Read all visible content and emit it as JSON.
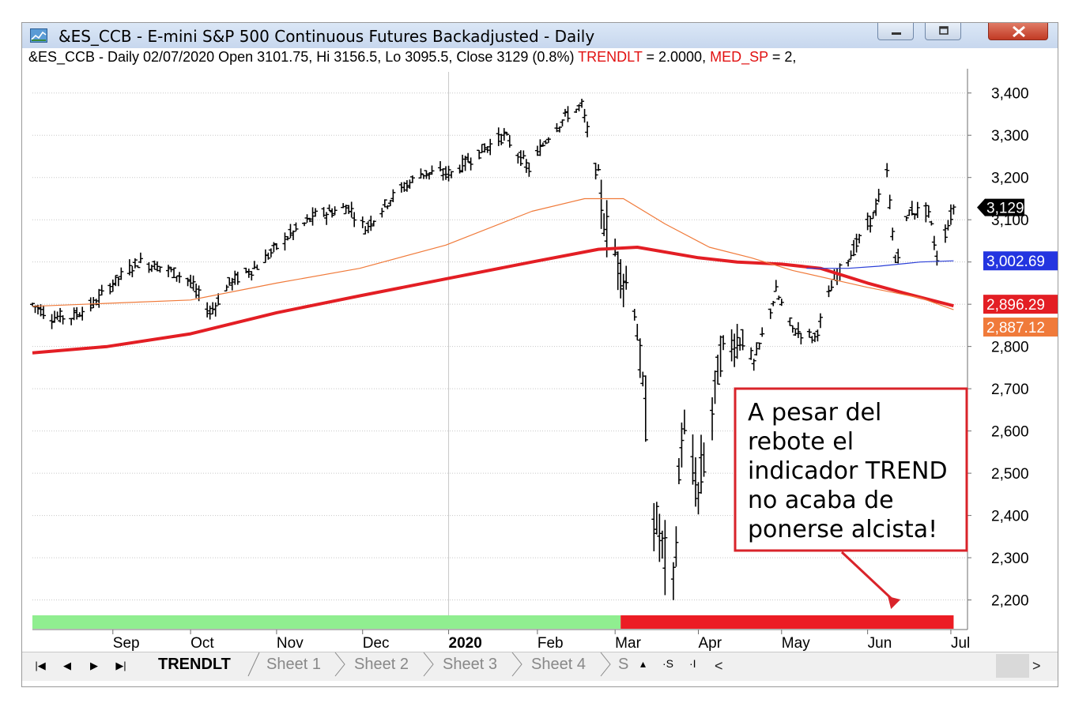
{
  "window": {
    "title": "&ES_CCB - E-mini S&P 500 Continuous Futures Backadjusted - Daily",
    "controls": {
      "minimize": "minimize",
      "maximize": "maximize",
      "close": "close"
    }
  },
  "infobar": {
    "text": "&ES_CCB - Daily 02/07/2020 Open 3101.75, Hi 3156.5, Lo 3095.5, Close 3129 (0.8%)",
    "ind1_name": "TRENDLT",
    "ind1_value": "= 2.0000,",
    "ind2_name": "MED_SP",
    "ind2_value": "= 2,"
  },
  "tabs": {
    "nav": [
      "|◀",
      "◀",
      "▶",
      "▶|"
    ],
    "items": [
      "TRENDLT",
      "Sheet 1",
      "Sheet 2",
      "Sheet 3",
      "Sheet 4",
      "S"
    ],
    "active": "TRENDLT",
    "small_buttons": [
      "▴",
      "·S",
      "·I"
    ],
    "scroll_left": "<",
    "scroll_right": ">"
  },
  "colors": {
    "price_bars": "#000000",
    "ma_slow": "#e31e24",
    "ma_mid": "#f07a3a",
    "ma_blue": "#2b3fd8",
    "trend_bull": "#90ee90",
    "trend_bear": "#ec1c24",
    "annotation_border": "#d9232a",
    "last_price_label": "#000000",
    "blue_label": "#2435e0",
    "red_label": "#e31e24",
    "orange_label": "#f07a3a"
  },
  "chart_data": {
    "type": "line",
    "title": "&ES_CCB - E-mini S&P 500 Continuous Futures Backadjusted - Daily",
    "xlabel": "",
    "ylabel": "",
    "ylim": [
      2130,
      3450
    ],
    "y_ticks": [
      2200,
      2300,
      2400,
      2500,
      2600,
      2700,
      2800,
      2900,
      3000,
      3100,
      3200,
      3300,
      3400
    ],
    "y_tick_labels": [
      "2,200",
      "2,300",
      "2,400",
      "2,500",
      "2,600",
      "2,700",
      "2,800",
      "2,900",
      "3,000",
      "3,100",
      "3,200",
      "3,300",
      "3,400"
    ],
    "x_month_labels": [
      {
        "label": "Sep",
        "date": "2019-09-03",
        "bold": false
      },
      {
        "label": "Oct",
        "date": "2019-10-01",
        "bold": false
      },
      {
        "label": "Nov",
        "date": "2019-11-01",
        "bold": false
      },
      {
        "label": "Dec",
        "date": "2019-12-02",
        "bold": false
      },
      {
        "label": "2020",
        "date": "2020-01-02",
        "bold": true
      },
      {
        "label": "Feb",
        "date": "2020-02-03",
        "bold": false
      },
      {
        "label": "Mar",
        "date": "2020-03-02",
        "bold": false
      },
      {
        "label": "Apr",
        "date": "2020-04-01",
        "bold": false
      },
      {
        "label": "May",
        "date": "2020-05-01",
        "bold": false
      },
      {
        "label": "Jun",
        "date": "2020-06-01",
        "bold": false
      },
      {
        "label": "Jul",
        "date": "2020-07-01",
        "bold": false
      }
    ],
    "x_range": [
      "2019-08-05",
      "2020-07-07"
    ],
    "grid": true,
    "price_bars": {
      "name": "&ES_CCB",
      "kind": "ohlc",
      "approx_close_path": [
        {
          "date": "2019-08-05",
          "value": 2900
        },
        {
          "date": "2019-08-12",
          "value": 2870
        },
        {
          "date": "2019-08-19",
          "value": 2870
        },
        {
          "date": "2019-08-27",
          "value": 2900
        },
        {
          "date": "2019-09-03",
          "value": 2950
        },
        {
          "date": "2019-09-12",
          "value": 3000
        },
        {
          "date": "2019-09-20",
          "value": 2990
        },
        {
          "date": "2019-09-30",
          "value": 2960
        },
        {
          "date": "2019-10-08",
          "value": 2880
        },
        {
          "date": "2019-10-15",
          "value": 2950
        },
        {
          "date": "2019-10-25",
          "value": 2990
        },
        {
          "date": "2019-11-05",
          "value": 3060
        },
        {
          "date": "2019-11-15",
          "value": 3110
        },
        {
          "date": "2019-11-27",
          "value": 3130
        },
        {
          "date": "2019-12-03",
          "value": 3080
        },
        {
          "date": "2019-12-12",
          "value": 3150
        },
        {
          "date": "2019-12-23",
          "value": 3210
        },
        {
          "date": "2020-01-03",
          "value": 3210
        },
        {
          "date": "2020-01-13",
          "value": 3260
        },
        {
          "date": "2020-01-22",
          "value": 3300
        },
        {
          "date": "2020-01-31",
          "value": 3220
        },
        {
          "date": "2020-02-07",
          "value": 3300
        },
        {
          "date": "2020-02-14",
          "value": 3350
        },
        {
          "date": "2020-02-19",
          "value": 3370
        },
        {
          "date": "2020-02-24",
          "value": 3220
        },
        {
          "date": "2020-02-27",
          "value": 3100
        },
        {
          "date": "2020-03-03",
          "value": 3000
        },
        {
          "date": "2020-03-09",
          "value": 2900
        },
        {
          "date": "2020-03-12",
          "value": 2700
        },
        {
          "date": "2020-03-16",
          "value": 2400
        },
        {
          "date": "2020-03-20",
          "value": 2300
        },
        {
          "date": "2020-03-23",
          "value": 2230
        },
        {
          "date": "2020-03-26",
          "value": 2600
        },
        {
          "date": "2020-04-01",
          "value": 2450
        },
        {
          "date": "2020-04-06",
          "value": 2650
        },
        {
          "date": "2020-04-09",
          "value": 2780
        },
        {
          "date": "2020-04-17",
          "value": 2830
        },
        {
          "date": "2020-04-21",
          "value": 2760
        },
        {
          "date": "2020-04-29",
          "value": 2930
        },
        {
          "date": "2020-05-05",
          "value": 2840
        },
        {
          "date": "2020-05-13",
          "value": 2820
        },
        {
          "date": "2020-05-20",
          "value": 2960
        },
        {
          "date": "2020-05-27",
          "value": 3030
        },
        {
          "date": "2020-06-03",
          "value": 3110
        },
        {
          "date": "2020-06-08",
          "value": 3210
        },
        {
          "date": "2020-06-11",
          "value": 3000
        },
        {
          "date": "2020-06-16",
          "value": 3120
        },
        {
          "date": "2020-06-23",
          "value": 3120
        },
        {
          "date": "2020-06-26",
          "value": 3010
        },
        {
          "date": "2020-07-02",
          "value": 3129
        }
      ]
    },
    "series": [
      {
        "name": "MED_SP",
        "color": "#e31e24",
        "points": [
          {
            "date": "2019-08-05",
            "value": 2785
          },
          {
            "date": "2019-09-01",
            "value": 2800
          },
          {
            "date": "2019-10-01",
            "value": 2830
          },
          {
            "date": "2019-11-01",
            "value": 2880
          },
          {
            "date": "2019-12-01",
            "value": 2920
          },
          {
            "date": "2020-01-01",
            "value": 2960
          },
          {
            "date": "2020-02-01",
            "value": 3000
          },
          {
            "date": "2020-02-25",
            "value": 3030
          },
          {
            "date": "2020-03-10",
            "value": 3035
          },
          {
            "date": "2020-04-01",
            "value": 3010
          },
          {
            "date": "2020-04-15",
            "value": 3000
          },
          {
            "date": "2020-05-01",
            "value": 2995
          },
          {
            "date": "2020-05-15",
            "value": 2985
          },
          {
            "date": "2020-06-01",
            "value": 2950
          },
          {
            "date": "2020-06-15",
            "value": 2925
          },
          {
            "date": "2020-07-02",
            "value": 2896.29
          }
        ]
      },
      {
        "name": "",
        "color": "#f07a3a",
        "points": [
          {
            "date": "2019-08-05",
            "value": 2895
          },
          {
            "date": "2019-10-01",
            "value": 2910
          },
          {
            "date": "2019-11-01",
            "value": 2950
          },
          {
            "date": "2019-12-01",
            "value": 2985
          },
          {
            "date": "2020-01-01",
            "value": 3040
          },
          {
            "date": "2020-02-01",
            "value": 3120
          },
          {
            "date": "2020-02-20",
            "value": 3150
          },
          {
            "date": "2020-03-05",
            "value": 3150
          },
          {
            "date": "2020-03-20",
            "value": 3090
          },
          {
            "date": "2020-04-05",
            "value": 3035
          },
          {
            "date": "2020-04-20",
            "value": 3010
          },
          {
            "date": "2020-05-05",
            "value": 2980
          },
          {
            "date": "2020-06-01",
            "value": 2940
          },
          {
            "date": "2020-06-20",
            "value": 2915
          },
          {
            "date": "2020-07-02",
            "value": 2887.12
          }
        ]
      },
      {
        "name": "",
        "color": "#2b3fd8",
        "points": [
          {
            "date": "2020-05-10",
            "value": 2985
          },
          {
            "date": "2020-05-25",
            "value": 2985
          },
          {
            "date": "2020-06-05",
            "value": 2990
          },
          {
            "date": "2020-06-20",
            "value": 3000
          },
          {
            "date": "2020-07-02",
            "value": 3002.69
          }
        ]
      }
    ],
    "trend_strip": [
      {
        "from": "2019-08-05",
        "to": "2020-03-04",
        "state": "bullish",
        "color": "#90ee90"
      },
      {
        "from": "2020-03-04",
        "to": "2020-07-02",
        "state": "bearish",
        "color": "#ec1c24"
      }
    ],
    "value_labels": [
      {
        "text": "3,129",
        "value": 3129,
        "style": "last-price",
        "color": "#000000"
      },
      {
        "text": "3,002.69",
        "value": 3002.69,
        "color": "#2435e0"
      },
      {
        "text": "2,896.29",
        "value": 2896.29,
        "color": "#e31e24"
      },
      {
        "text": "2,887.12",
        "value": 2887.12,
        "color": "#f07a3a"
      }
    ],
    "annotation": {
      "lines": [
        "A pesar del",
        "rebote el",
        "indicador TREND",
        "no acaba de",
        "ponerse alcista!"
      ],
      "arrow_to_date": "2020-06-10"
    }
  }
}
